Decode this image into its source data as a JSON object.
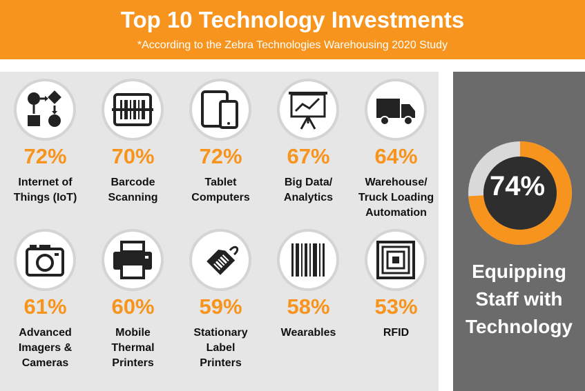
{
  "header": {
    "title": "Top 10 Technology Investments",
    "subtitle": "*According to the Zebra Technologies Warehousing 2020 Study"
  },
  "colors": {
    "accent": "#f7941d",
    "panel": "#e6e6e6",
    "side": "#6b6b6b",
    "icon": "#222222"
  },
  "items": [
    {
      "value": "72%",
      "label": "Internet of\nThings (IoT)",
      "icon": "iot-flowchart-icon"
    },
    {
      "value": "70%",
      "label": "Barcode\nScanning",
      "icon": "barcode-scanner-icon"
    },
    {
      "value": "72%",
      "label": "Tablet\nComputers",
      "icon": "tablet-icon"
    },
    {
      "value": "67%",
      "label": "Big Data/\nAnalytics",
      "icon": "analytics-board-icon"
    },
    {
      "value": "64%",
      "label": "Warehouse/\nTruck Loading\nAutomation",
      "icon": "truck-icon"
    },
    {
      "value": "61%",
      "label": "Advanced\nImagers &\nCameras",
      "icon": "camera-icon"
    },
    {
      "value": "60%",
      "label": "Mobile\nThermal\nPrinters",
      "icon": "printer-icon"
    },
    {
      "value": "59%",
      "label": "Stationary\nLabel\nPrinters",
      "icon": "label-tag-icon"
    },
    {
      "value": "58%",
      "label": "Wearables",
      "icon": "barcode-icon"
    },
    {
      "value": "53%",
      "label": "RFID",
      "icon": "rfid-chip-icon"
    }
  ],
  "highlight": {
    "value": "74%",
    "fraction": 0.74,
    "label": "Equipping\nStaff with\nTechnology"
  }
}
